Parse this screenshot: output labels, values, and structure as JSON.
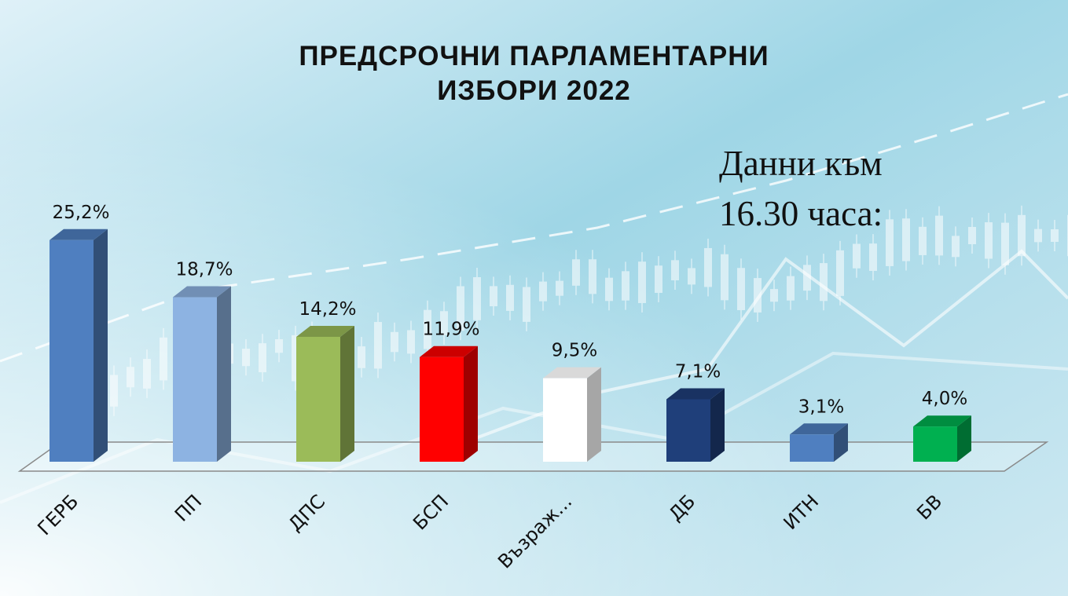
{
  "title_line1": "ПРЕДСРОЧНИ ПАРЛАМЕНТАРНИ",
  "title_line2": "ИЗБОРИ 2022",
  "note_line1": "Данни към",
  "note_line2": "16.30 часа:",
  "colors": {
    "ГЕРБ": "#4f7fc0",
    "ПП": "#8db3e2",
    "ДПС": "#9bbb59",
    "БСП": "#ff0000",
    "Възраж...": "#ffffff",
    "ДБ": "#1f3f7a",
    "ИТН": "#4f7fc0",
    "БВ": "#00b050"
  },
  "chart_data": {
    "type": "bar",
    "categories": [
      "ГЕРБ",
      "ПП",
      "ДПС",
      "БСП",
      "Възраж...",
      "ДБ",
      "ИТН",
      "БВ"
    ],
    "values": [
      25.2,
      18.7,
      14.2,
      11.9,
      9.5,
      7.1,
      3.1,
      4.0
    ],
    "value_labels": [
      "25,2%",
      "18,7%",
      "14,2%",
      "11,9%",
      "9,5%",
      "7,1%",
      "3,1%",
      "4,0%"
    ],
    "title": "ПРЕДСРОЧНИ ПАРЛАМЕНТАРНИ ИЗБОРИ 2022",
    "xlabel": "",
    "ylabel": "",
    "grid": false,
    "legend": "none"
  }
}
